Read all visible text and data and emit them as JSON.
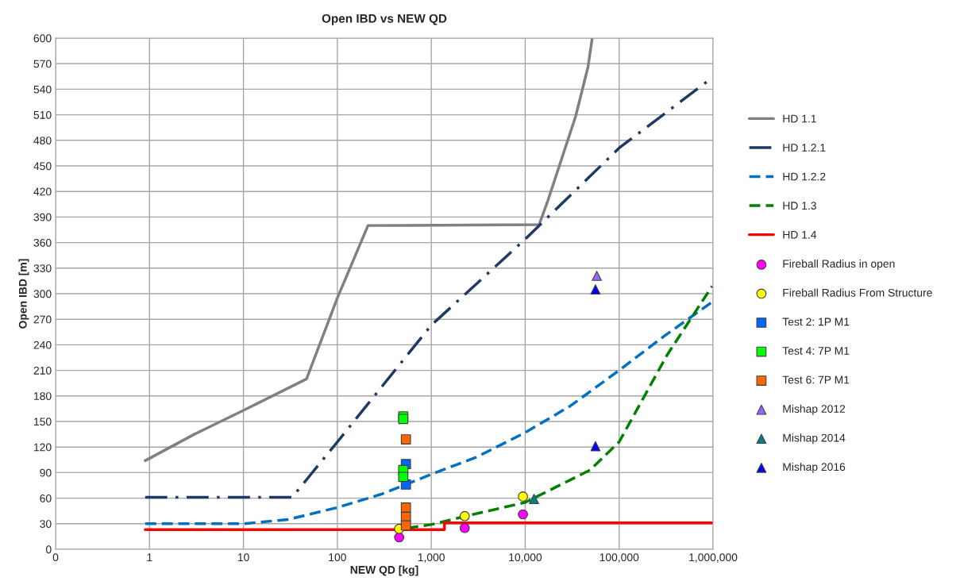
{
  "chart_data": {
    "type": "line",
    "title": "Open IBD vs NEW QD",
    "xlabel": "NEW QD [kg]",
    "ylabel": "Open IBD [m]",
    "log": "x",
    "xlim": [
      0.1,
      1000000
    ],
    "ylim": [
      0,
      600
    ],
    "xticks": [
      {
        "value": 0.1,
        "label": "0"
      },
      1,
      10,
      100,
      {
        "value": 1000,
        "label": "1,000"
      },
      {
        "value": 10000,
        "label": "10,000"
      },
      {
        "value": 100000,
        "label": "100,000"
      },
      {
        "value": 1000000,
        "label": "1,000,000"
      }
    ],
    "yticks": [
      0,
      30,
      60,
      90,
      120,
      150,
      180,
      210,
      240,
      270,
      300,
      330,
      360,
      390,
      420,
      450,
      480,
      510,
      540,
      570,
      600
    ],
    "grid": true,
    "legend": "right",
    "series": [
      {
        "name": "HD 1.1",
        "color": "#808080",
        "line_style": "solid",
        "marker": "none",
        "x": [
          0.9,
          3,
          10,
          47,
          100,
          212,
          14060,
          17400,
          34400,
          46600,
          51700
        ],
        "values": [
          104,
          135,
          163,
          200,
          295,
          380,
          381,
          409,
          508,
          566,
          600
        ]
      },
      {
        "name": "HD 1.2.1",
        "color": "#1f3864",
        "line_style": "dashdot",
        "marker": "none",
        "x": [
          0.9,
          33,
          100,
          1000,
          10000,
          100000,
          865000
        ],
        "values": [
          61,
          61,
          126,
          263,
          364,
          471,
          549
        ]
      },
      {
        "name": "HD 1.2.2",
        "color": "#0070c0",
        "line_style": "dashed",
        "marker": "none",
        "x": [
          0.9,
          10,
          30,
          100,
          300,
          1000,
          3000,
          10000,
          30000,
          100000,
          300000,
          1000000
        ],
        "values": [
          30,
          30,
          35,
          49,
          65,
          88,
          108,
          137,
          168,
          210,
          250,
          291
        ]
      },
      {
        "name": "HD 1.3",
        "color": "#008000",
        "line_style": "dashed",
        "marker": "none",
        "x": [
          556,
          1000,
          2350,
          10000,
          49000,
          100000,
          324000,
          980000
        ],
        "values": [
          25,
          29,
          39,
          55,
          93,
          126,
          228,
          309
        ]
      },
      {
        "name": "HD 1.4",
        "color": "#ff0000",
        "line_style": "solid",
        "marker": "none",
        "x": [
          0.9,
          1380,
          1380,
          1000000
        ],
        "values": [
          23,
          23,
          31,
          31
        ]
      },
      {
        "name": "Fireball Radius in open",
        "type": "scatter",
        "color": "#ff00ff",
        "marker": "circle",
        "x": [
          455,
          2270,
          9460
        ],
        "values": [
          14,
          25,
          41
        ]
      },
      {
        "name": "Fireball Radius From Structure",
        "type": "scatter",
        "color": "#ffff00",
        "marker": "circle",
        "x": [
          455,
          2270,
          9460
        ],
        "values": [
          24,
          39,
          62
        ]
      },
      {
        "name": "Test 2: 1P M1",
        "type": "scatter",
        "color": "#0066ff",
        "marker": "square",
        "x": [
          537,
          537
        ],
        "values": [
          100,
          76
        ]
      },
      {
        "name": "Test 4: 7P M1",
        "type": "scatter",
        "color": "#00ff00",
        "marker": "square",
        "x": [
          503,
          503,
          503,
          503
        ],
        "values": [
          156,
          153,
          93,
          85
        ]
      },
      {
        "name": "Test 6: 7P M1",
        "type": "scatter",
        "color": "#ff6600",
        "marker": "square",
        "x": [
          537,
          537,
          537,
          537
        ],
        "values": [
          129,
          49,
          38,
          28
        ]
      },
      {
        "name": "Mishap 2012",
        "type": "scatter",
        "color": "#9966ff",
        "marker": "triangle",
        "x": [
          57800
        ],
        "values": [
          321
        ]
      },
      {
        "name": "Mishap 2014",
        "type": "scatter",
        "color": "#008080",
        "marker": "triangle",
        "x": [
          12400
        ],
        "values": [
          59
        ]
      },
      {
        "name": "Mishap 2016",
        "type": "scatter",
        "color": "#0000ff",
        "marker": "triangle",
        "x": [
          56000,
          56000
        ],
        "values": [
          305,
          121
        ]
      }
    ]
  }
}
